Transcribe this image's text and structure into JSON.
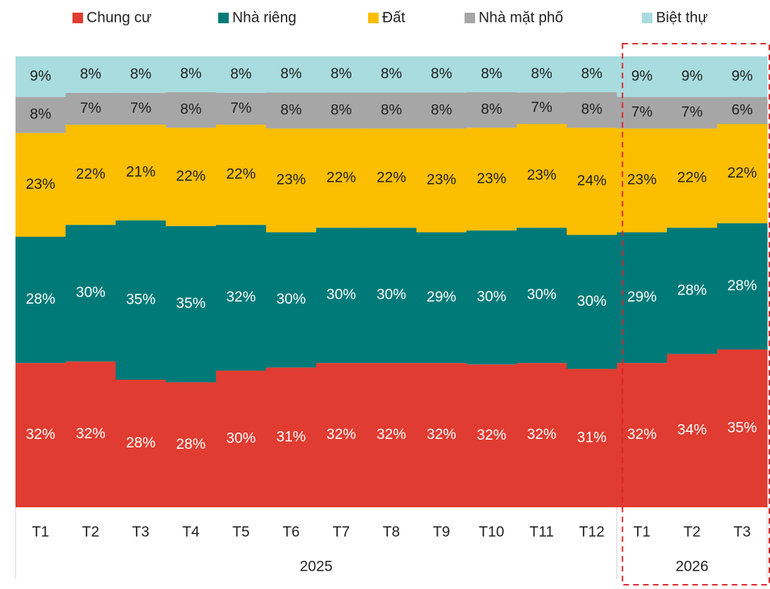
{
  "chart_data": {
    "type": "bar",
    "stacked": "percent",
    "categories": [
      "T1",
      "T2",
      "T3",
      "T4",
      "T5",
      "T6",
      "T7",
      "T8",
      "T9",
      "T10",
      "T11",
      "T12",
      "T1",
      "T2",
      "T3"
    ],
    "groups": [
      {
        "label": "2025",
        "size": 12
      },
      {
        "label": "2026",
        "size": 3
      }
    ],
    "highlight_group": 1,
    "series": [
      {
        "name": "Chung cư",
        "color": "#e03c31",
        "label_color": "#ffffff",
        "values": [
          32,
          32,
          28,
          28,
          30,
          31,
          32,
          32,
          32,
          32,
          32,
          31,
          32,
          34,
          35
        ]
      },
      {
        "name": "Nhà riêng",
        "color": "#007a78",
        "label_color": "#ffffff",
        "values": [
          28,
          30,
          35,
          35,
          32,
          30,
          30,
          30,
          29,
          30,
          30,
          30,
          29,
          28,
          28
        ]
      },
      {
        "name": "Đất",
        "color": "#fbbe00",
        "label_color": "#222222",
        "values": [
          23,
          22,
          21,
          22,
          22,
          23,
          22,
          22,
          23,
          23,
          23,
          24,
          23,
          22,
          22
        ]
      },
      {
        "name": "Nhà mặt phố",
        "color": "#a6a6a6",
        "label_color": "#222222",
        "values": [
          8,
          7,
          7,
          8,
          7,
          8,
          8,
          8,
          8,
          8,
          7,
          8,
          7,
          7,
          6
        ]
      },
      {
        "name": "Biệt thự",
        "color": "#a8dcdf",
        "label_color": "#222222",
        "values": [
          9,
          8,
          8,
          8,
          8,
          8,
          8,
          8,
          8,
          8,
          8,
          8,
          9,
          9,
          9
        ]
      }
    ],
    "value_labels": [
      [
        "32%",
        "32%",
        "28%",
        "28%",
        "30%",
        "31%",
        "32%",
        "32%",
        "32%",
        "32%",
        "32%",
        "31%",
        "32%",
        "34%",
        "35%"
      ],
      [
        "28%",
        "30%",
        "35%",
        "35%",
        "32%",
        "30%",
        "30%",
        "30%",
        "29%",
        "30%",
        "30%",
        "30%",
        "29%",
        "28%",
        "28%"
      ],
      [
        "23%",
        "22%",
        "21%",
        "22%",
        "22%",
        "23%",
        "22%",
        "22%",
        "23%",
        "23%",
        "23%",
        "24%",
        "23%",
        "22%",
        "22%"
      ],
      [
        "8%",
        "7%",
        "7%",
        "8%",
        "7%",
        "8%",
        "8%",
        "8%",
        "8%",
        "8%",
        "7%",
        "8%",
        "7%",
        "7%",
        "6%"
      ],
      [
        "9%",
        "8%",
        "8%",
        "8%",
        "8%",
        "8%",
        "8%",
        "8%",
        "8%",
        "8%",
        "8%",
        "8%",
        "9%",
        "9%",
        "9%"
      ]
    ],
    "legend": "top"
  }
}
